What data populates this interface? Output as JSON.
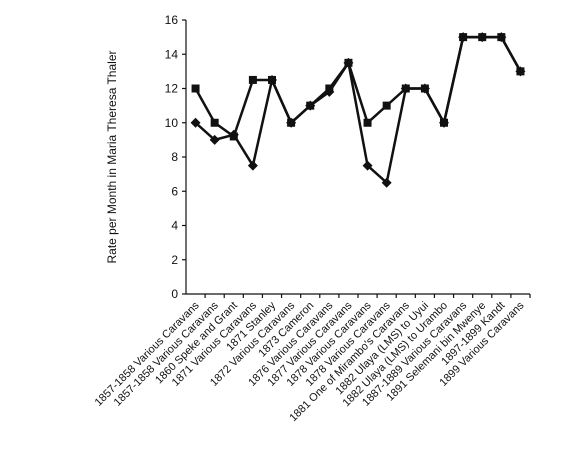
{
  "chart_data": {
    "type": "line",
    "y_label": "Rate per Month in Maria Theresa Thaler",
    "categories": [
      "1857-1858 Various Caravans",
      "1857-1858 Various Caravans",
      "1860 Speke and Grant",
      "1871 Various Caravans",
      "1871 Stanley",
      "1872 Various Caravans",
      "1873 Cameron",
      "1876 Various Caravans",
      "1877 Various Caravans",
      "1878 Various Caravans",
      "1878 Various Caravans",
      "1881 One of Mirambo's Caravans",
      "1882 Ulaya (LMS) to Uyui",
      "1882 Ulaya (LMS) to Urambo",
      "1887-1889 Various Caravans",
      "1891 Selemani bin Mwenye",
      "1897-1899 Kandt",
      "1899 Various Caravans"
    ],
    "series": [
      {
        "color": "#111111",
        "marker": "square",
        "values": [
          12,
          10,
          9.2,
          12.5,
          12.5,
          10,
          11,
          12,
          13.5,
          10,
          11,
          12,
          12,
          10,
          15,
          15,
          15,
          13
        ]
      },
      {
        "color": "#111111",
        "marker": "diamond",
        "values": [
          10,
          9,
          9.3,
          7.5,
          12.5,
          10,
          11,
          11.8,
          13.5,
          7.5,
          6.5,
          12,
          12,
          10,
          15,
          15,
          15,
          13
        ]
      }
    ],
    "ylim": [
      0,
      16
    ],
    "yticks": [
      0,
      2,
      4,
      6,
      8,
      10,
      12,
      14,
      16
    ],
    "grid": false
  }
}
